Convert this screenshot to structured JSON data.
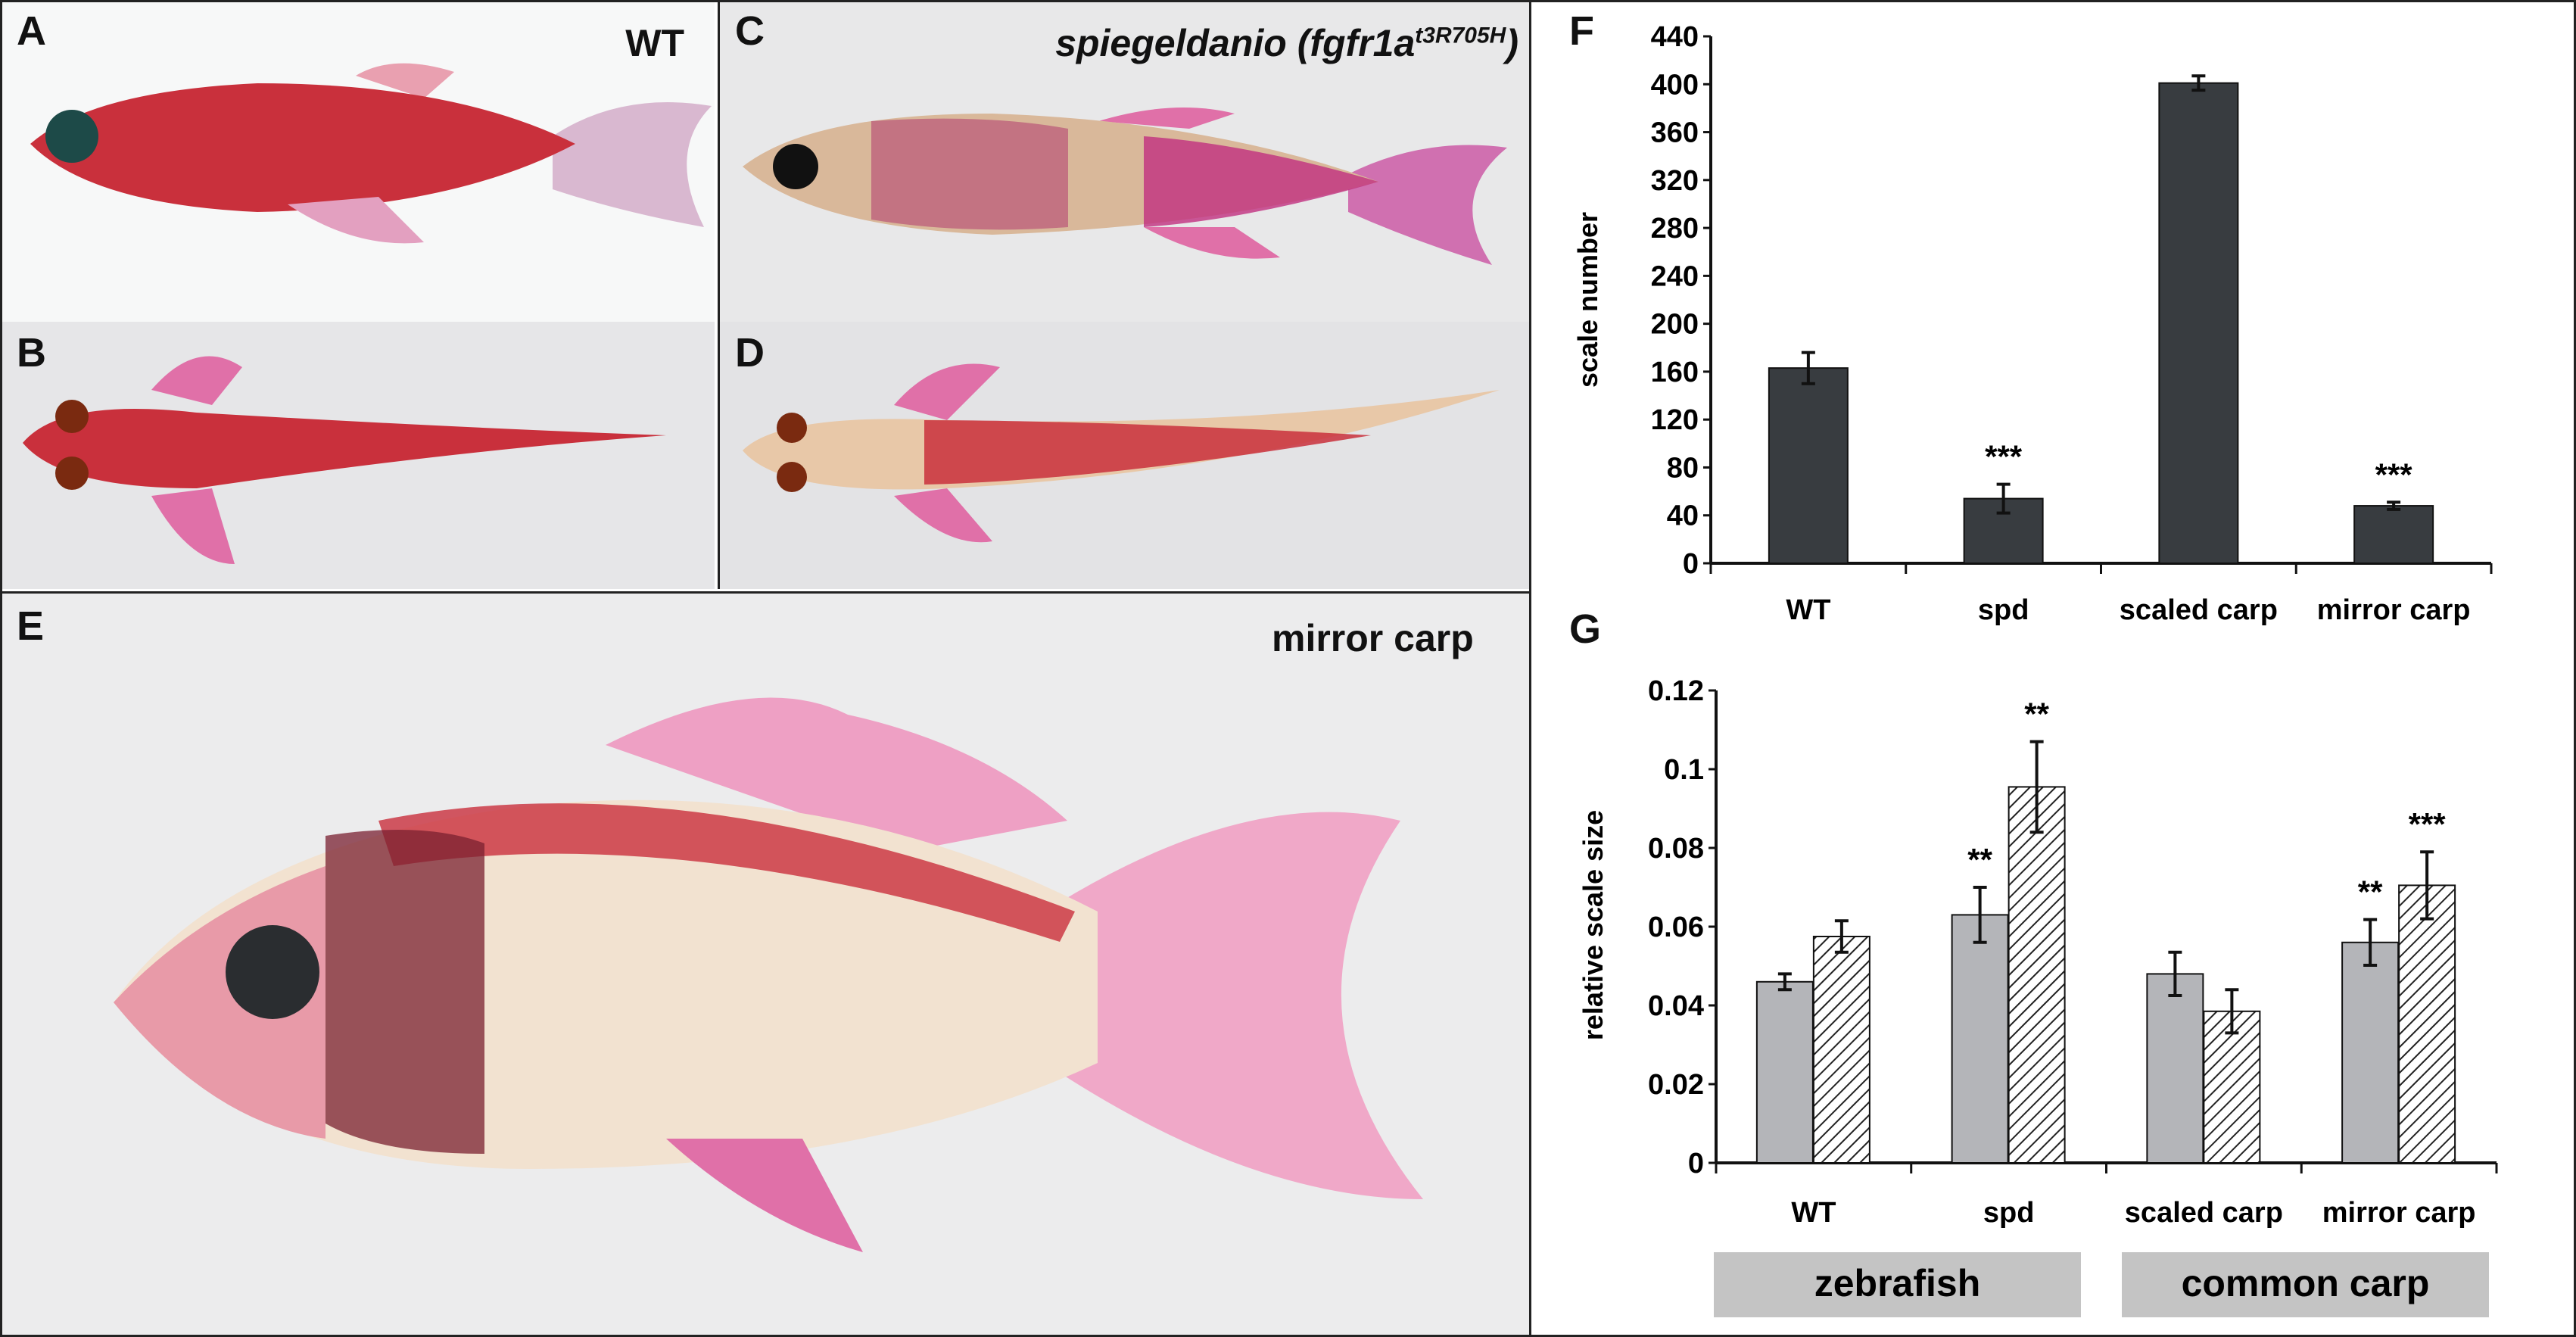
{
  "panels": {
    "A": {
      "letter": "A",
      "title": "WT"
    },
    "B": {
      "letter": "B"
    },
    "C": {
      "letter": "C",
      "title_main": "spiegeldanio",
      "title_gene": "fgfr1a",
      "title_allele": "t3R705H"
    },
    "D": {
      "letter": "D"
    },
    "E": {
      "letter": "E",
      "title": "mirror carp"
    },
    "F": {
      "letter": "F"
    },
    "G": {
      "letter": "G"
    }
  },
  "colors": {
    "dark_bar": "#383c40",
    "light_bar": "#b4b5b9",
    "group_box": "#c4c4c4",
    "fish_red": "#c9303c",
    "fin_pink": "#e070a8"
  },
  "chart_data": [
    {
      "type": "bar",
      "panel": "F",
      "ylabel": "scale number",
      "categories": [
        "WT",
        "spd",
        "scaled carp",
        "mirror carp"
      ],
      "values": [
        163,
        54,
        401,
        48
      ],
      "errors": [
        13,
        12,
        6,
        3
      ],
      "annotations": [
        "",
        "***",
        "",
        "***"
      ],
      "ylim": [
        0,
        440
      ],
      "yticks": [
        "0",
        "40",
        "80",
        "120",
        "160",
        "200",
        "240",
        "280",
        "320",
        "360",
        "400",
        "440"
      ]
    },
    {
      "type": "bar",
      "panel": "G",
      "ylabel": "relative scale size",
      "categories": [
        "WT",
        "spd",
        "scaled carp",
        "mirror carp"
      ],
      "groups": [
        "zebrafish",
        "common carp"
      ],
      "series": [
        {
          "name": "solid",
          "values": [
            0.046,
            0.063,
            0.048,
            0.056
          ],
          "errors": [
            0.002,
            0.007,
            0.0055,
            0.0058
          ],
          "annotations": [
            "",
            "**",
            "",
            "**"
          ]
        },
        {
          "name": "hatched",
          "values": [
            0.0575,
            0.0955,
            0.0385,
            0.0705
          ],
          "errors": [
            0.004,
            0.0115,
            0.0055,
            0.0085
          ],
          "annotations": [
            "",
            "**",
            "",
            "***"
          ]
        }
      ],
      "ylim": [
        0,
        0.12
      ],
      "yticks": [
        "0",
        "0.02",
        "0.04",
        "0.06",
        "0.08",
        "0.1",
        "0.12"
      ]
    }
  ]
}
